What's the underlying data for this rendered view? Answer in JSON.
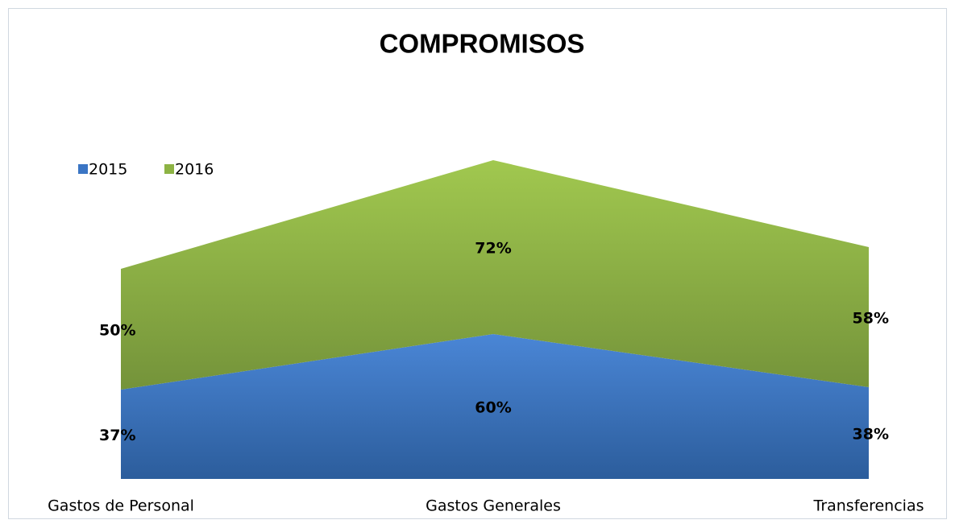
{
  "chart_data": {
    "type": "stacked_area",
    "title": "COMPROMISOS",
    "categories": [
      "Gastos de Personal",
      "Gastos Generales",
      "Transferencias"
    ],
    "series": [
      {
        "name": "2015",
        "color": "#3a75c4",
        "values": [
          37,
          60,
          38
        ],
        "value_labels": [
          "37%",
          "60%",
          "38%"
        ]
      },
      {
        "name": "2016",
        "color": "#8db344",
        "values": [
          50,
          72,
          58
        ],
        "value_labels": [
          "50%",
          "72%",
          "58%"
        ]
      }
    ],
    "legend": "top-left"
  }
}
